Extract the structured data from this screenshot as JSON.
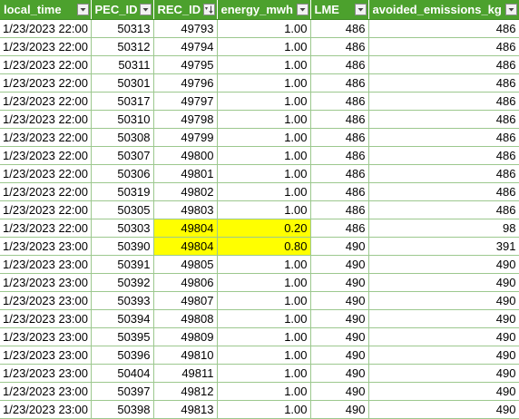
{
  "colors": {
    "header_bg": "#4ca12d",
    "header_text": "#ffffff",
    "grid": "#9cc88e",
    "highlight": "#ffff00"
  },
  "table": {
    "headers": [
      {
        "label": "local_time",
        "filter_icon": "filter-dropdown-icon"
      },
      {
        "label": "PEC_ID",
        "filter_icon": "filter-dropdown-icon"
      },
      {
        "label": "REC_ID",
        "filter_icon": "sort-ascending-icon"
      },
      {
        "label": "energy_mwh",
        "filter_icon": "filter-dropdown-icon"
      },
      {
        "label": "LME",
        "filter_icon": "filter-dropdown-icon"
      },
      {
        "label": "avoided_emissions_kg",
        "filter_icon": "filter-dropdown-icon"
      }
    ],
    "rows": [
      [
        "1/23/2023 22:00",
        "50313",
        "49793",
        "1.00",
        "486",
        "486"
      ],
      [
        "1/23/2023 22:00",
        "50312",
        "49794",
        "1.00",
        "486",
        "486"
      ],
      [
        "1/23/2023 22:00",
        "50311",
        "49795",
        "1.00",
        "486",
        "486"
      ],
      [
        "1/23/2023 22:00",
        "50301",
        "49796",
        "1.00",
        "486",
        "486"
      ],
      [
        "1/23/2023 22:00",
        "50317",
        "49797",
        "1.00",
        "486",
        "486"
      ],
      [
        "1/23/2023 22:00",
        "50310",
        "49798",
        "1.00",
        "486",
        "486"
      ],
      [
        "1/23/2023 22:00",
        "50308",
        "49799",
        "1.00",
        "486",
        "486"
      ],
      [
        "1/23/2023 22:00",
        "50307",
        "49800",
        "1.00",
        "486",
        "486"
      ],
      [
        "1/23/2023 22:00",
        "50306",
        "49801",
        "1.00",
        "486",
        "486"
      ],
      [
        "1/23/2023 22:00",
        "50319",
        "49802",
        "1.00",
        "486",
        "486"
      ],
      [
        "1/23/2023 22:00",
        "50305",
        "49803",
        "1.00",
        "486",
        "486"
      ],
      [
        "1/23/2023 22:00",
        "50303",
        "49804",
        "0.20",
        "486",
        "98"
      ],
      [
        "1/23/2023 23:00",
        "50390",
        "49804",
        "0.80",
        "490",
        "391"
      ],
      [
        "1/23/2023 23:00",
        "50391",
        "49805",
        "1.00",
        "490",
        "490"
      ],
      [
        "1/23/2023 23:00",
        "50392",
        "49806",
        "1.00",
        "490",
        "490"
      ],
      [
        "1/23/2023 23:00",
        "50393",
        "49807",
        "1.00",
        "490",
        "490"
      ],
      [
        "1/23/2023 23:00",
        "50394",
        "49808",
        "1.00",
        "490",
        "490"
      ],
      [
        "1/23/2023 23:00",
        "50395",
        "49809",
        "1.00",
        "490",
        "490"
      ],
      [
        "1/23/2023 23:00",
        "50396",
        "49810",
        "1.00",
        "490",
        "490"
      ],
      [
        "1/23/2023 23:00",
        "50404",
        "49811",
        "1.00",
        "490",
        "490"
      ],
      [
        "1/23/2023 23:00",
        "50397",
        "49812",
        "1.00",
        "490",
        "490"
      ],
      [
        "1/23/2023 23:00",
        "50398",
        "49813",
        "1.00",
        "490",
        "490"
      ]
    ],
    "highlighted_cells": [
      [
        11,
        2
      ],
      [
        11,
        3
      ],
      [
        12,
        2
      ],
      [
        12,
        3
      ]
    ]
  }
}
